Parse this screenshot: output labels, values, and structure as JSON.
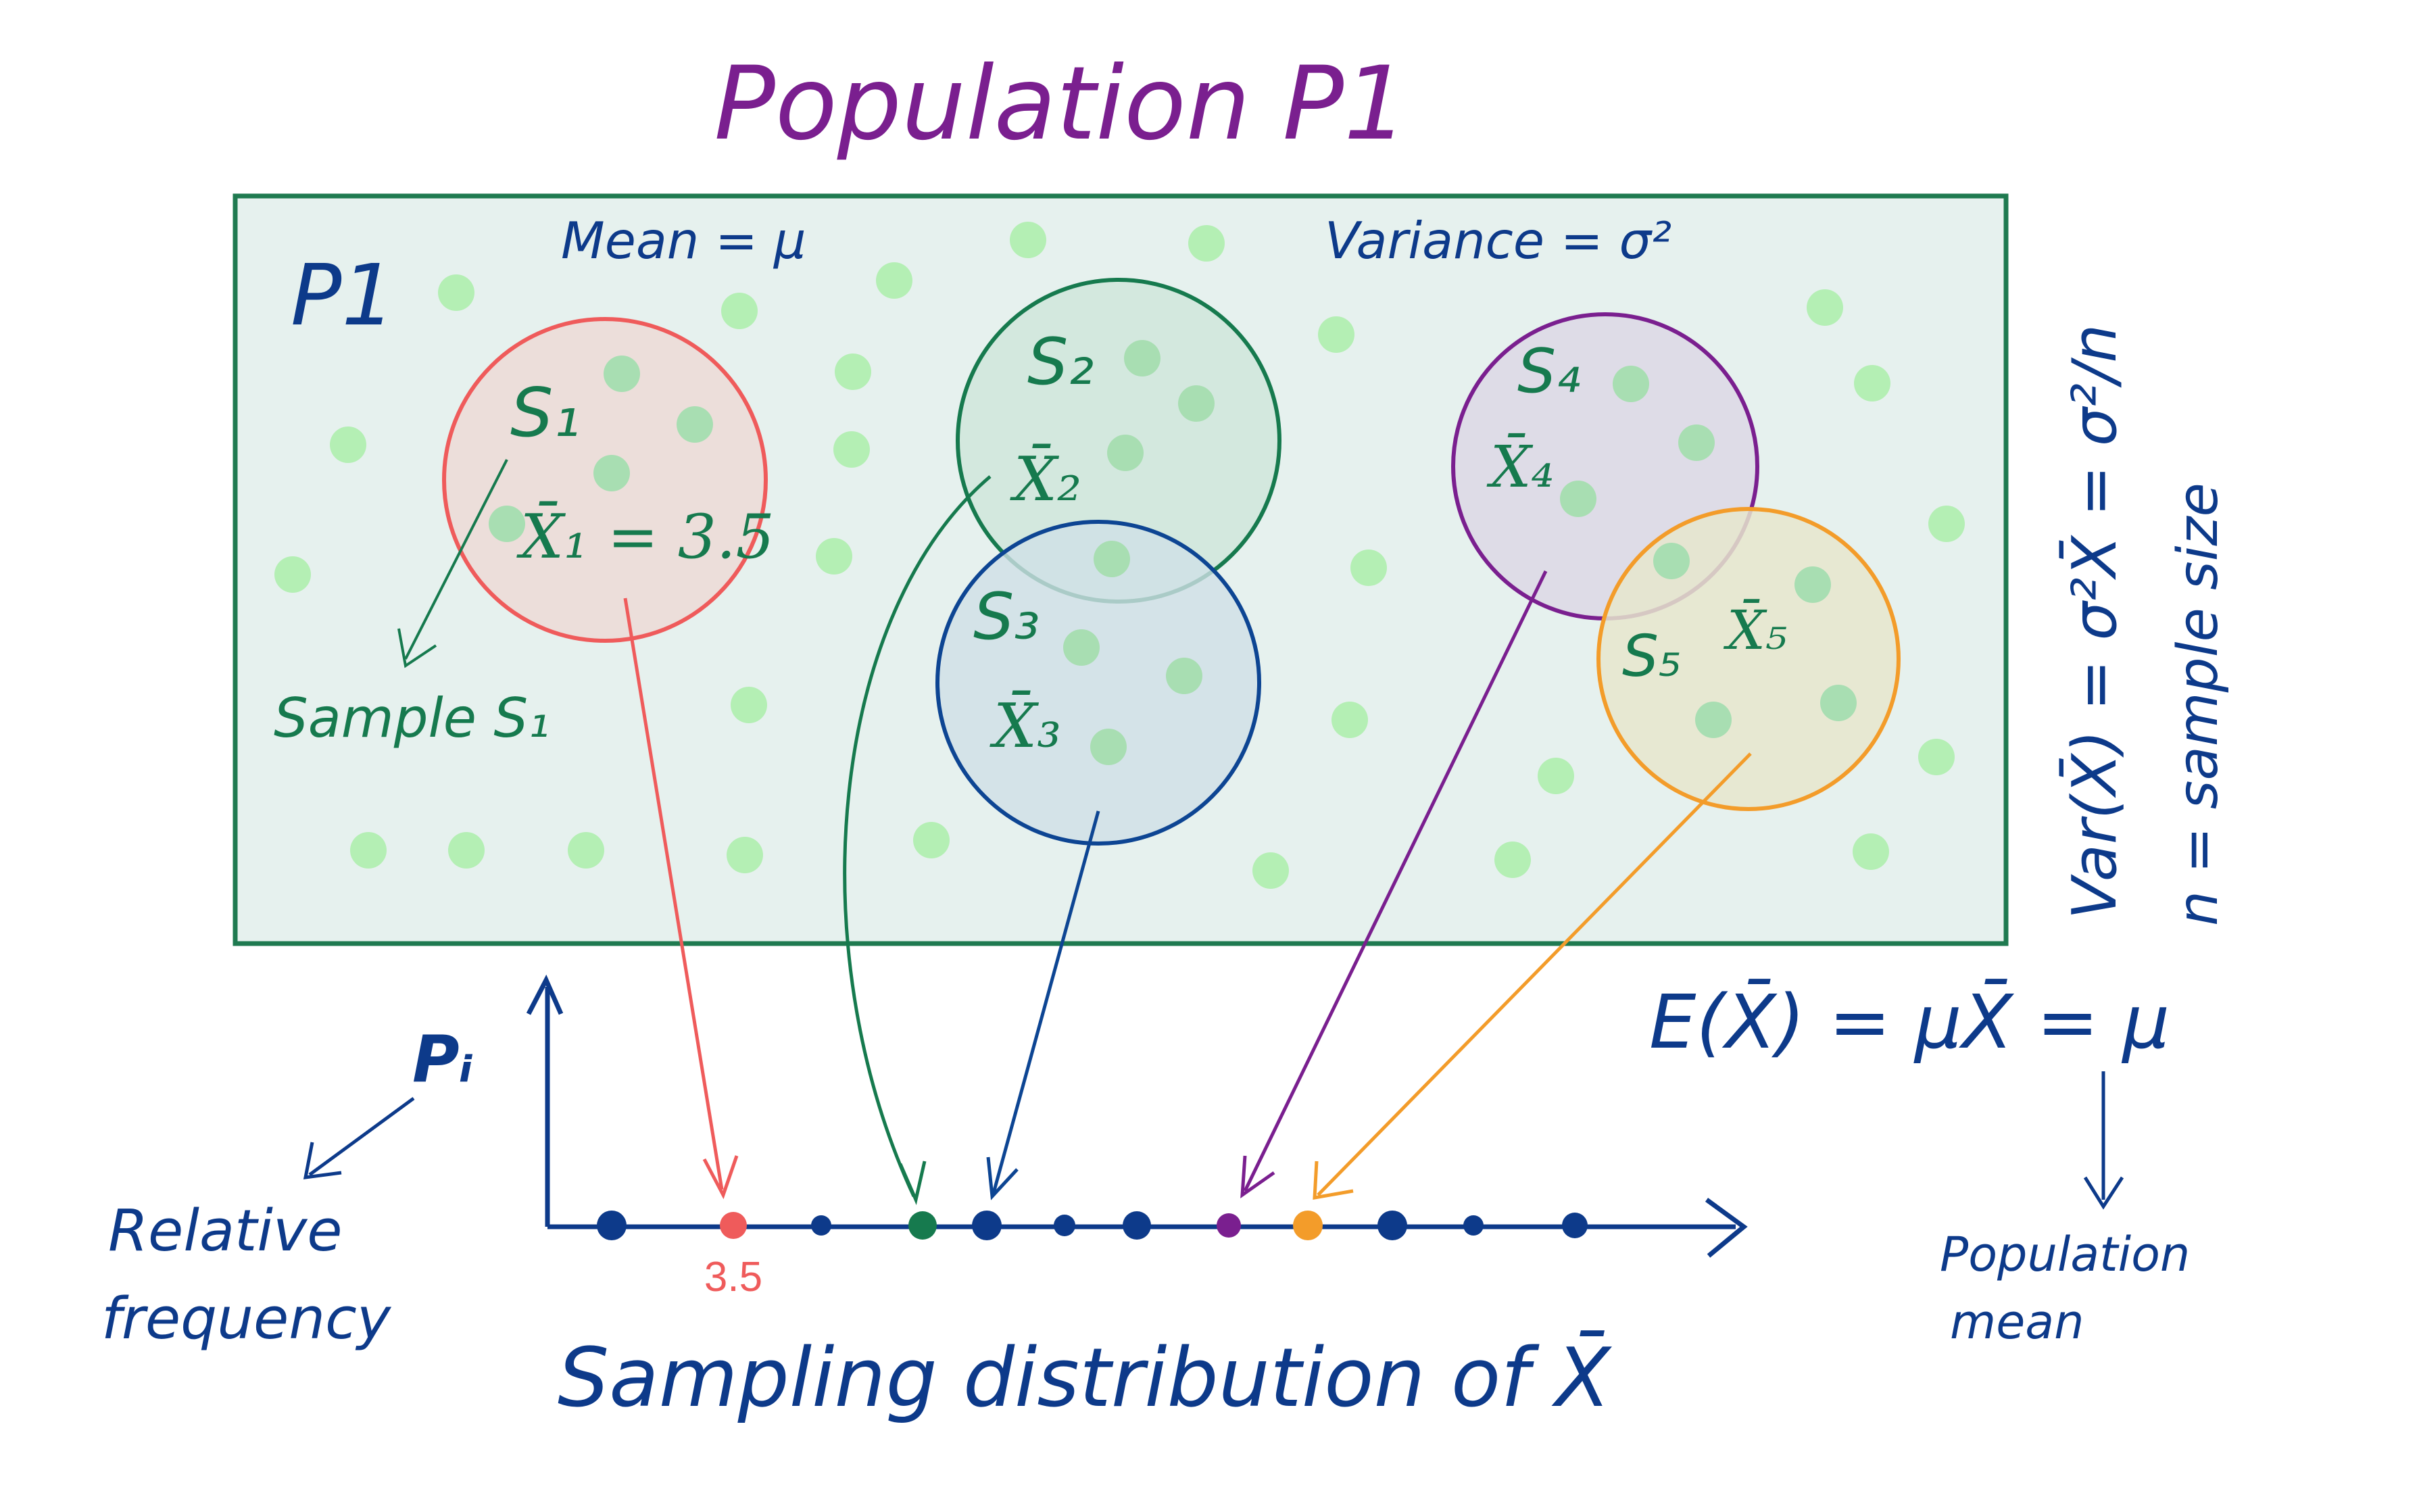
{
  "title": "Population P1",
  "population": {
    "label": "P1",
    "mean_label": "Mean = μ",
    "variance_label": "Variance = σ²"
  },
  "samples": [
    {
      "id": "s1",
      "name": "S₁",
      "mean_label": "X̄₁ = 3.5",
      "color": "#ef5b5b",
      "fill": "#ecdad6"
    },
    {
      "id": "s2",
      "name": "S₂",
      "mean_label": "X̄₂",
      "color": "#167a4e",
      "fill": "#cfe6da"
    },
    {
      "id": "s3",
      "name": "S₃",
      "mean_label": "X̄₃",
      "color": "#0d4593",
      "fill": "#d0e0e6"
    },
    {
      "id": "s4",
      "name": "S₄",
      "mean_label": "X̄₄",
      "color": "#7a1f8f",
      "fill": "#ddd9e6"
    },
    {
      "id": "s5",
      "name": "S₅",
      "mean_label": "X̄₅",
      "color": "#f39c2a",
      "fill": "#e6e6cc"
    }
  ],
  "sample_note": "Sample S₁",
  "variance_formula": "Var(X̄) = σ²X̄ = σ²/n",
  "sample_size_note": "n = sample size",
  "expectation_formula": "E(X̄) = μX̄ = μ",
  "population_mean_note": "Population mean",
  "axis": {
    "y_label": "Pᵢ",
    "y_note": "Relative frequency",
    "x_tick_label": "3.5",
    "caption": "Sampling distribution of X̄"
  },
  "colors": {
    "box_fill": "#e6f1ee",
    "box_border": "#1f7a50",
    "dot": "#b4efb4",
    "title": "#7a1f8f",
    "ink": "#0d3a8a"
  }
}
